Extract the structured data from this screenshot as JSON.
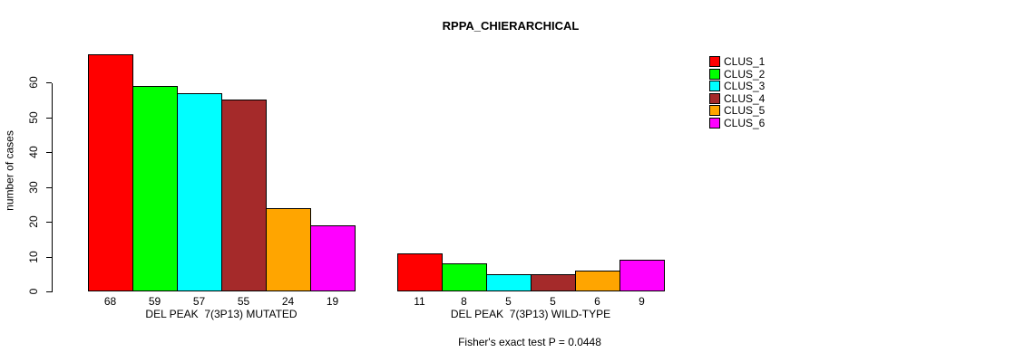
{
  "chart_data": {
    "type": "bar",
    "title": "RPPA_CHIERARCHICAL",
    "ylabel": "number of cases",
    "xlabel": "",
    "ylim": [
      0,
      60
    ],
    "yticks": [
      0,
      10,
      20,
      30,
      40,
      50,
      60
    ],
    "grid": false,
    "legend_position": "top-right",
    "series": [
      {
        "name": "CLUS_1",
        "color": "#FF0000"
      },
      {
        "name": "CLUS_2",
        "color": "#00FF00"
      },
      {
        "name": "CLUS_3",
        "color": "#00FFFF"
      },
      {
        "name": "CLUS_4",
        "color": "#A52A2A"
      },
      {
        "name": "CLUS_5",
        "color": "#FFA500"
      },
      {
        "name": "CLUS_6",
        "color": "#FF00FF"
      }
    ],
    "groups": [
      {
        "label": "DEL PEAK  7(3P13) MUTATED",
        "values": [
          68,
          59,
          57,
          55,
          24,
          19
        ]
      },
      {
        "label": "DEL PEAK  7(3P13) WILD-TYPE",
        "values": [
          11,
          8,
          5,
          5,
          6,
          9
        ]
      }
    ],
    "annotation": "Fisher's exact test P = 0.0448"
  }
}
